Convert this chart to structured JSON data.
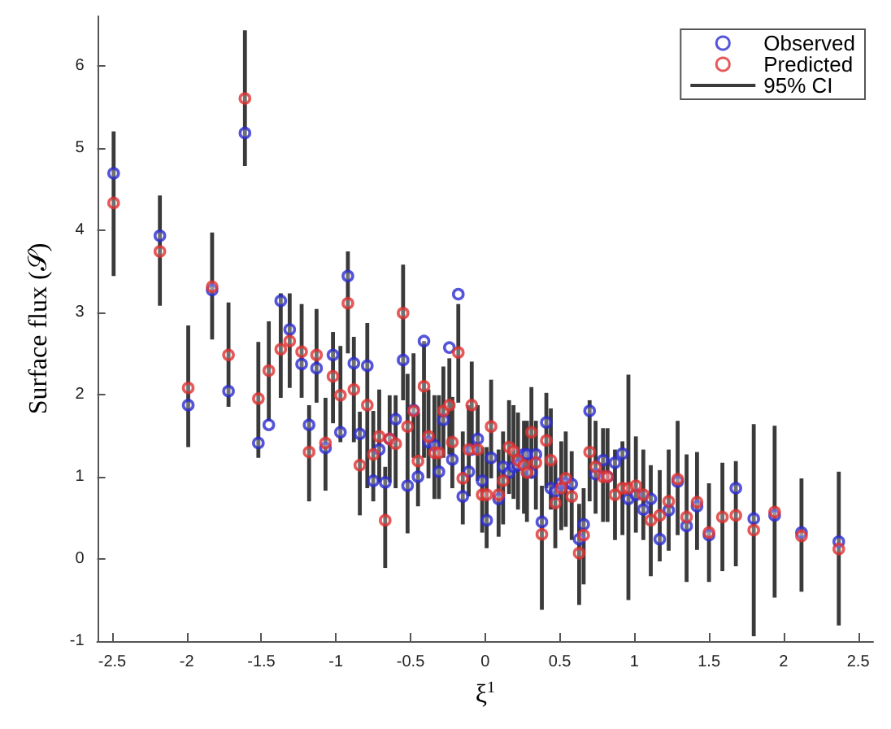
{
  "chart_data": {
    "type": "scatter",
    "xlabel": "ξ$^{1}$",
    "ylabel": "Surface flux (𝒮)",
    "x": [
      -2.49,
      -2.18,
      -1.99,
      -1.83,
      -1.72,
      -1.61,
      -1.52,
      -1.45,
      -1.37,
      -1.31,
      -1.23,
      -1.18,
      -1.13,
      -1.07,
      -1.02,
      -0.97,
      -0.92,
      -0.88,
      -0.84,
      -0.79,
      -0.75,
      -0.71,
      -0.67,
      -0.64,
      -0.6,
      -0.55,
      -0.52,
      -0.48,
      -0.45,
      -0.41,
      -0.38,
      -0.34,
      -0.31,
      -0.28,
      -0.24,
      -0.22,
      -0.18,
      -0.15,
      -0.11,
      -0.09,
      -0.05,
      -0.02,
      0.01,
      0.04,
      0.09,
      0.12,
      0.16,
      0.19,
      0.22,
      0.26,
      0.28,
      0.31,
      0.34,
      0.38,
      0.41,
      0.44,
      0.47,
      0.51,
      0.54,
      0.58,
      0.63,
      0.66,
      0.7,
      0.74,
      0.79,
      0.82,
      0.87,
      0.92,
      0.96,
      1.01,
      1.06,
      1.11,
      1.17,
      1.23,
      1.29,
      1.35,
      1.42,
      1.5,
      1.59,
      1.68,
      1.8,
      1.94,
      2.12,
      2.37
    ],
    "series": [
      {
        "name": "Observed",
        "color": "#2a2ad0",
        "marker": "circle",
        "values": [
          4.69,
          3.93,
          1.87,
          3.27,
          2.04,
          5.18,
          1.41,
          1.63,
          3.14,
          2.79,
          2.37,
          1.63,
          2.32,
          1.35,
          2.48,
          1.54,
          3.44,
          2.38,
          1.52,
          2.35,
          0.95,
          1.33,
          0.93,
          1.46,
          1.7,
          2.42,
          0.89,
          1.81,
          1.0,
          2.65,
          1.42,
          1.38,
          1.06,
          1.69,
          2.57,
          1.21,
          3.22,
          0.76,
          1.06,
          1.33,
          1.46,
          0.95,
          0.47,
          1.23,
          0.73,
          1.12,
          1.05,
          1.12,
          1.14,
          1.27,
          1.27,
          1.05,
          1.27,
          0.45,
          1.66,
          0.86,
          0.82,
          0.92,
          0.92,
          0.91,
          0.24,
          0.42,
          1.8,
          1.03,
          1.2,
          1.0,
          1.17,
          1.28,
          0.73,
          0.78,
          0.6,
          0.73,
          0.24,
          0.59,
          0.94,
          0.4,
          0.64,
          0.29,
          null,
          0.86,
          0.49,
          0.53,
          0.32,
          0.21
        ]
      },
      {
        "name": "Predicted",
        "color": "#e03030",
        "marker": "circle",
        "values": [
          4.33,
          3.74,
          2.08,
          3.31,
          2.48,
          5.6,
          1.95,
          2.29,
          2.55,
          2.65,
          2.52,
          1.3,
          2.48,
          1.41,
          2.22,
          1.99,
          3.11,
          2.06,
          1.14,
          1.87,
          1.27,
          1.49,
          0.47,
          1.46,
          1.4,
          2.99,
          1.61,
          1.8,
          1.19,
          2.1,
          1.49,
          1.29,
          1.29,
          1.8,
          1.87,
          1.42,
          2.51,
          0.98,
          1.33,
          1.87,
          1.33,
          0.78,
          0.78,
          1.61,
          0.78,
          0.95,
          1.36,
          1.31,
          1.2,
          1.14,
          1.05,
          1.54,
          1.17,
          0.3,
          1.44,
          1.2,
          0.68,
          0.86,
          0.98,
          0.76,
          0.07,
          0.29,
          1.3,
          1.12,
          1.0,
          1.0,
          0.78,
          0.86,
          0.86,
          0.89,
          0.78,
          0.47,
          0.53,
          0.7,
          0.97,
          0.51,
          0.69,
          0.32,
          0.51,
          0.53,
          0.35,
          0.57,
          0.28,
          0.12
        ]
      },
      {
        "name": "95% CI",
        "type": "bar",
        "color": "#3a3a3a",
        "base": [
          3.44,
          3.08,
          1.36,
          2.67,
          1.85,
          4.78,
          1.23,
          1.68,
          1.96,
          2.08,
          1.96,
          0.7,
          1.9,
          0.83,
          1.65,
          1.42,
          2.5,
          1.42,
          0.53,
          0.86,
          0.7,
          0.93,
          -0.11,
          0.93,
          0.86,
          1.93,
          0.31,
          1.23,
          0.64,
          1.23,
          0.98,
          0.73,
          0.73,
          1.23,
          1.27,
          0.86,
          1.9,
          0.42,
          0.76,
          1.33,
          0.95,
          0.32,
          0.13,
          0.98,
          0.27,
          0.42,
          0.79,
          0.73,
          0.6,
          0.55,
          0.45,
          0.98,
          0.6,
          -0.62,
          0.86,
          0.6,
          0.13,
          0.35,
          0.39,
          0.23,
          -0.56,
          -0.31,
          0.7,
          0.55,
          0.45,
          0.45,
          0.23,
          0.29,
          -0.5,
          0.32,
          0.23,
          -0.21,
          -0.03,
          0.1,
          0.29,
          -0.28,
          0.11,
          -0.28,
          -0.15,
          -0.09,
          -0.94,
          -0.47,
          -0.4,
          -0.81
        ],
        "values": [
          1.76,
          1.34,
          1.48,
          1.3,
          1.27,
          1.65,
          1.41,
          1.21,
          1.27,
          1.15,
          1.14,
          1.17,
          1.14,
          1.13,
          1.11,
          1.17,
          1.24,
          1.28,
          1.26,
          2.01,
          1.1,
          1.13,
          1.23,
          1.06,
          1.13,
          1.65,
          1.94,
          1.27,
          1.14,
          1.42,
          1.08,
          1.26,
          1.26,
          1.11,
          1.17,
          1.11,
          1.2,
          1.13,
          1.11,
          1.07,
          0.92,
          1.04,
          1.23,
          1.2,
          1.06,
          1.13,
          1.14,
          1.14,
          1.18,
          1.13,
          1.23,
          1.11,
          1.08,
          1.51,
          1.16,
          1.23,
          1.07,
          1.08,
          1.16,
          1.08,
          1.23,
          1.17,
          1.23,
          1.13,
          1.14,
          1.14,
          1.1,
          1.14,
          2.74,
          1.17,
          1.1,
          1.35,
          1.11,
          1.23,
          1.39,
          1.55,
          1.19,
          1.2,
          1.32,
          1.28,
          2.58,
          2.09,
          1.38,
          1.87
        ]
      }
    ],
    "xlim": [
      -2.6,
      2.6
    ],
    "xticks": [
      -2.5,
      -2,
      -1.5,
      -1,
      -0.5,
      0,
      0.5,
      1,
      1.5,
      2,
      2.5
    ],
    "ylim": [
      -1,
      6.6
    ],
    "yticks": [
      -1,
      0,
      1,
      2,
      3,
      4,
      5,
      6
    ],
    "grid": false,
    "legend": "top right"
  }
}
